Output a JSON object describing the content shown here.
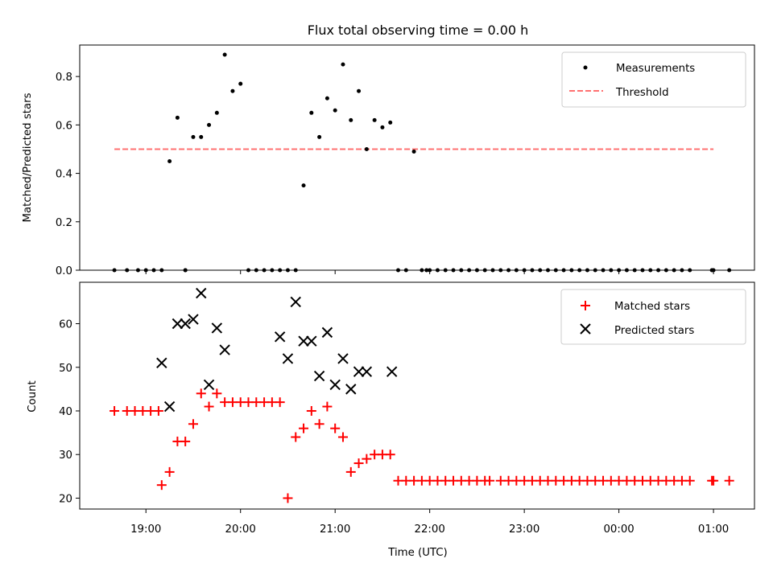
{
  "chart_data": [
    {
      "type": "scatter",
      "title": "Flux total observing time = 0.00 h",
      "xlabel": "",
      "ylabel": "Matched/Predicted stars",
      "xlim": [
        "18:18",
        "01:26"
      ],
      "ylim": [
        0,
        0.93
      ],
      "yticks": [
        "0.0",
        "0.2",
        "0.4",
        "0.6",
        "0.8"
      ],
      "ytick_values": [
        0,
        0.2,
        0.4,
        0.6,
        0.8
      ],
      "legend_position": "top-right",
      "series": [
        {
          "name": "Measurements",
          "marker": "dot",
          "color": "#000000",
          "x": [
            "18:40",
            "18:48",
            "18:55",
            "19:00",
            "19:05",
            "19:10",
            "19:15",
            "19:20",
            "19:30",
            "19:35",
            "19:40",
            "19:45",
            "19:50",
            "19:55",
            "20:00",
            "20:05",
            "20:10",
            "20:15",
            "20:20",
            "20:25",
            "20:30",
            "20:35",
            "20:40",
            "20:45",
            "20:50",
            "20:55",
            "21:00",
            "21:05",
            "21:10",
            "21:15",
            "21:20",
            "21:25",
            "21:30",
            "21:35",
            "21:40",
            "21:45",
            "21:50",
            "21:55",
            "22:00",
            "22:05",
            "22:10",
            "22:15",
            "22:20",
            "22:25",
            "22:30",
            "22:35",
            "22:40",
            "22:45",
            "22:50",
            "22:55",
            "23:00",
            "23:05",
            "23:10",
            "23:15",
            "23:20",
            "23:25",
            "23:30",
            "23:35",
            "23:40",
            "23:45",
            "23:50",
            "23:55",
            "00:00",
            "00:05",
            "00:10",
            "00:15",
            "00:20",
            "00:25",
            "00:30",
            "00:35",
            "00:40",
            "00:45",
            "00:59",
            "01:00",
            "01:10",
            "19:25",
            "19:25",
            "21:58"
          ],
          "y": [
            0,
            0,
            0,
            0,
            0,
            0,
            0.45,
            0.63,
            0.55,
            0.55,
            0.6,
            0.65,
            0.89,
            0.74,
            0.77,
            0,
            0,
            0,
            0,
            0,
            0,
            0,
            0.35,
            0.65,
            0.55,
            0.71,
            0.66,
            0.85,
            0.62,
            0.74,
            0.5,
            0.62,
            0.59,
            0.61,
            0,
            0,
            0.49,
            0,
            0,
            0,
            0,
            0,
            0,
            0,
            0,
            0,
            0,
            0,
            0,
            0,
            0,
            0,
            0,
            0,
            0,
            0,
            0,
            0,
            0,
            0,
            0,
            0,
            0,
            0,
            0,
            0,
            0,
            0,
            0,
            0,
            0,
            0,
            0,
            0,
            0,
            0,
            0,
            0
          ]
        },
        {
          "name": "Threshold",
          "marker": "dashed-line",
          "color": "#ff7070",
          "x": [
            "18:40",
            "01:00"
          ],
          "y": [
            0.5,
            0.5
          ]
        }
      ]
    },
    {
      "type": "scatter",
      "xlabel": "Time (UTC)",
      "ylabel": "Count",
      "xticks": [
        "19:00",
        "20:00",
        "21:00",
        "22:00",
        "23:00",
        "00:00",
        "01:00"
      ],
      "xlim": [
        "18:18",
        "01:26"
      ],
      "ylim": [
        17.5,
        69.5
      ],
      "yticks": [
        "20",
        "30",
        "40",
        "50",
        "60"
      ],
      "ytick_values": [
        20,
        30,
        40,
        50,
        60
      ],
      "legend_position": "top-right",
      "series": [
        {
          "name": "Matched stars",
          "marker": "plus",
          "color": "#ff0000",
          "x": [
            "18:40",
            "18:48",
            "18:53",
            "18:58",
            "19:03",
            "19:08",
            "19:10",
            "19:15",
            "19:20",
            "19:25",
            "19:30",
            "19:35",
            "19:40",
            "19:45",
            "19:50",
            "19:55",
            "20:00",
            "20:05",
            "20:10",
            "20:15",
            "20:20",
            "20:25",
            "20:30",
            "20:35",
            "20:40",
            "20:45",
            "20:50",
            "20:55",
            "21:00",
            "21:05",
            "21:10",
            "21:15",
            "21:20",
            "21:25",
            "21:30",
            "21:35",
            "21:40",
            "21:45",
            "21:50",
            "21:55",
            "22:00",
            "22:05",
            "22:10",
            "22:15",
            "22:20",
            "22:25",
            "22:30",
            "22:35",
            "22:38",
            "22:45",
            "22:50",
            "22:55",
            "23:00",
            "23:05",
            "23:10",
            "23:15",
            "23:20",
            "23:25",
            "23:30",
            "23:35",
            "23:40",
            "23:45",
            "23:50",
            "23:55",
            "00:00",
            "00:05",
            "00:10",
            "00:15",
            "00:20",
            "00:25",
            "00:30",
            "00:35",
            "00:40",
            "00:45",
            "00:59",
            "01:00",
            "01:10"
          ],
          "y": [
            40,
            40,
            40,
            40,
            40,
            40,
            23,
            26,
            33,
            33,
            37,
            44,
            41,
            44,
            42,
            42,
            42,
            42,
            42,
            42,
            42,
            42,
            20,
            34,
            36,
            40,
            37,
            41,
            36,
            34,
            26,
            28,
            29,
            30,
            30,
            30,
            24,
            24,
            24,
            24,
            24,
            24,
            24,
            24,
            24,
            24,
            24,
            24,
            24,
            24,
            24,
            24,
            24,
            24,
            24,
            24,
            24,
            24,
            24,
            24,
            24,
            24,
            24,
            24,
            24,
            24,
            24,
            24,
            24,
            24,
            24,
            24,
            24,
            24,
            24,
            24,
            24
          ]
        },
        {
          "name": "Predicted stars",
          "marker": "x",
          "color": "#000000",
          "x": [
            "19:10",
            "19:15",
            "19:20",
            "19:25",
            "19:30",
            "19:35",
            "19:40",
            "19:45",
            "19:50",
            "20:25",
            "20:30",
            "20:35",
            "20:40",
            "20:45",
            "20:50",
            "20:55",
            "21:00",
            "21:05",
            "21:10",
            "21:15",
            "21:20",
            "21:36"
          ],
          "y": [
            51,
            41,
            60,
            60,
            61,
            67,
            46,
            59,
            54,
            57,
            52,
            65,
            56,
            56,
            48,
            58,
            46,
            52,
            45,
            49,
            49,
            49
          ]
        }
      ]
    }
  ]
}
